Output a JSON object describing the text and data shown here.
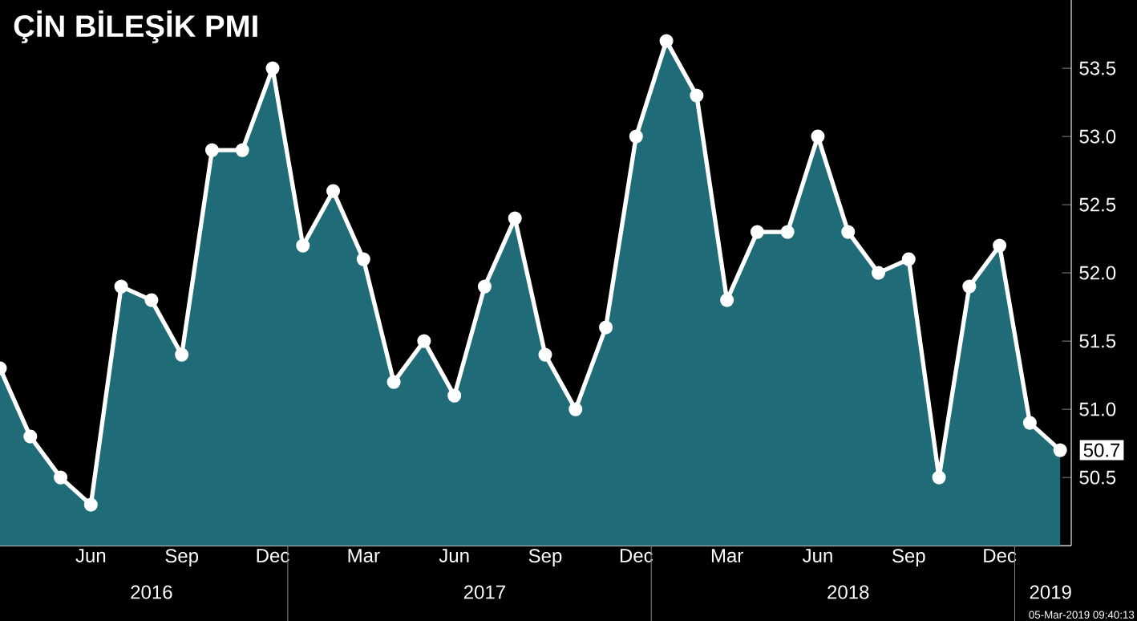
{
  "chart_data": {
    "type": "area",
    "title": "ÇİN BİLEŞİK PMI",
    "x": [
      "2016-03",
      "2016-04",
      "2016-05",
      "2016-06",
      "2016-07",
      "2016-08",
      "2016-09",
      "2016-10",
      "2016-11",
      "2016-12",
      "2017-01",
      "2017-02",
      "2017-03",
      "2017-04",
      "2017-05",
      "2017-06",
      "2017-07",
      "2017-08",
      "2017-09",
      "2017-10",
      "2017-11",
      "2017-12",
      "2018-01",
      "2018-02",
      "2018-03",
      "2018-04",
      "2018-05",
      "2018-06",
      "2018-07",
      "2018-08",
      "2018-09",
      "2018-10",
      "2018-11",
      "2018-12",
      "2019-01",
      "2019-02"
    ],
    "series": [
      {
        "color": "#1f6b78",
        "values": [
          51.3,
          50.8,
          50.5,
          50.3,
          51.9,
          51.8,
          51.4,
          52.9,
          52.9,
          53.5,
          52.2,
          52.6,
          52.1,
          51.2,
          51.5,
          51.1,
          51.9,
          52.4,
          51.4,
          51.0,
          51.6,
          53.0,
          53.7,
          53.3,
          51.8,
          52.3,
          52.3,
          53.0,
          52.3,
          52.0,
          52.1,
          50.5,
          51.9,
          52.2,
          50.9,
          50.7
        ]
      }
    ],
    "marker": "circle",
    "xlim": [
      "2016-03",
      "2019-02-12"
    ],
    "xticks": [
      {
        "value": "2016-06",
        "label": "Jun"
      },
      {
        "value": "2016-09",
        "label": "Sep"
      },
      {
        "value": "2016-12",
        "label": "Dec"
      },
      {
        "value": "2017-03",
        "label": "Mar"
      },
      {
        "value": "2017-06",
        "label": "Jun"
      },
      {
        "value": "2017-09",
        "label": "Sep"
      },
      {
        "value": "2017-12",
        "label": "Dec"
      },
      {
        "value": "2018-03",
        "label": "Mar"
      },
      {
        "value": "2018-06",
        "label": "Jun"
      },
      {
        "value": "2018-09",
        "label": "Sep"
      },
      {
        "value": "2018-12",
        "label": "Dec"
      }
    ],
    "ylim": [
      50.0,
      54.0
    ],
    "yticks": [
      {
        "value": 50.5,
        "label": "50.5"
      },
      {
        "value": 51.0,
        "label": "51.0"
      },
      {
        "value": 51.5,
        "label": "51.5"
      },
      {
        "value": 52.0,
        "label": "52.0"
      },
      {
        "value": 52.5,
        "label": "52.5"
      },
      {
        "value": 53.0,
        "label": "53.0"
      },
      {
        "value": 53.5,
        "label": "53.5"
      }
    ],
    "annotations": [
      "2016",
      "2017",
      "2018",
      "2019",
      "05-Mar-2019 09:40:13",
      {
        "text": "50.7",
        "x": "2019-02",
        "y": 50.7
      }
    ]
  }
}
